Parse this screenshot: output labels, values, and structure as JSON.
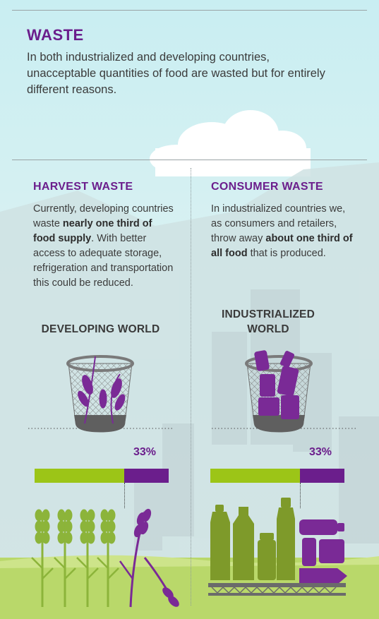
{
  "section": {
    "title": "WASTE",
    "intro": "In both industrialized and developing countries, unacceptable quantities of food are wasted but for entirely different reasons."
  },
  "harvest": {
    "title": "HARVEST WASTE",
    "body": [
      {
        "text": "Currently, developing countries waste ",
        "bold": false
      },
      {
        "text": "nearly one third of food supply",
        "bold": true
      },
      {
        "text": ". With better access to adequate storage, refrigeration and transportation this could be reduced.",
        "bold": false
      }
    ],
    "world_label": "DEVELOPING WORLD",
    "percent": "33%",
    "share": 0.33
  },
  "consumer": {
    "title": "CONSUMER WASTE",
    "body": [
      {
        "text": "In industrialized countries we, as consumers and retailers, throw away ",
        "bold": false
      },
      {
        "text": "about one third of all food",
        "bold": true
      },
      {
        "text": " that is produced.",
        "bold": false
      }
    ],
    "world_label_line1": "INDUSTRIALIZED",
    "world_label_line2": "WORLD",
    "percent": "33%",
    "share": 0.33
  },
  "colors": {
    "purple": "#6b1e8c",
    "green": "#9cc517",
    "olive": "#7e9a2a",
    "grass": "#b9d86a"
  },
  "icons": [
    "cloud",
    "city-skyline",
    "waste-basket",
    "wheat",
    "bottle",
    "jar"
  ]
}
